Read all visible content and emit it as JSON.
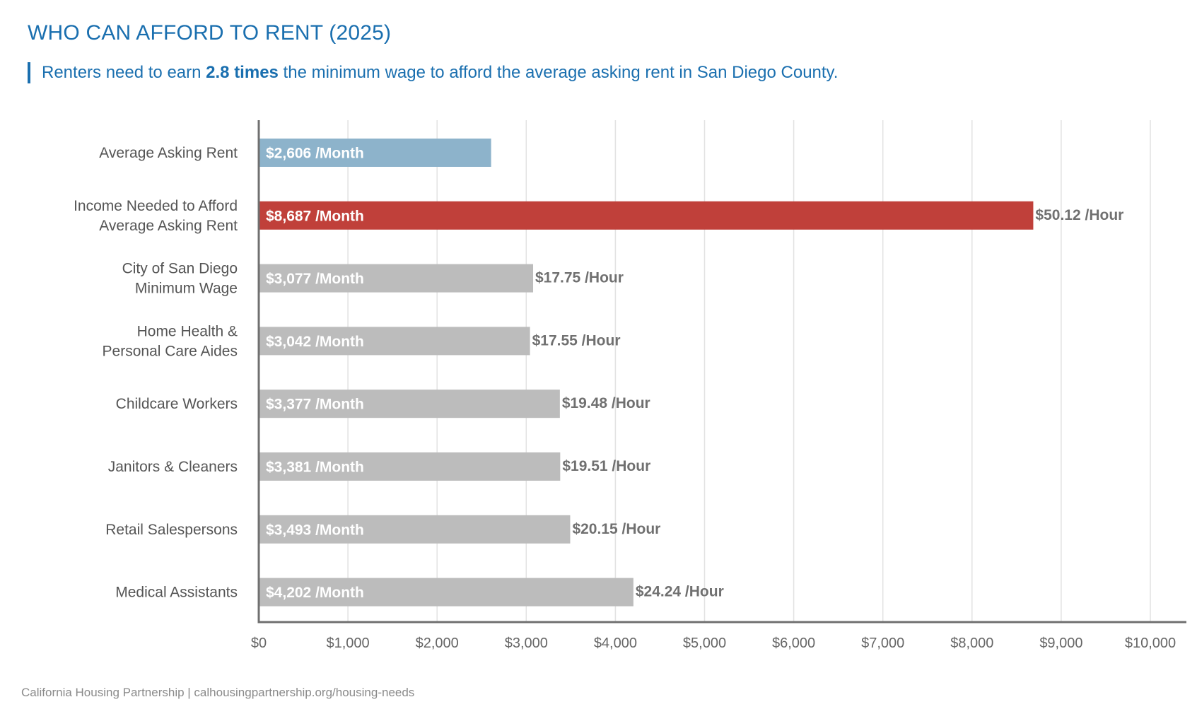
{
  "header": {
    "title": "WHO CAN AFFORD TO RENT (2025)",
    "subtitle_pre": "Renters need to earn ",
    "subtitle_bold": "2.8 times",
    "subtitle_post": " the minimum wage to afford the average asking rent in San Diego County."
  },
  "footer": {
    "source": "California Housing Partnership | calhousingpartnership.org/housing-needs"
  },
  "colors": {
    "rent": "#8db3cb",
    "income_needed": "#c0403a",
    "occupation": "#bcbcbc",
    "axis": "#707070",
    "grid": "#e2e2e2",
    "accent": "#1a6faf"
  },
  "chart_data": {
    "type": "bar",
    "orientation": "horizontal",
    "title": "WHO CAN AFFORD TO RENT (2025)",
    "xlim": [
      0,
      10000
    ],
    "x_ticks": [
      0,
      1000,
      2000,
      3000,
      4000,
      5000,
      6000,
      7000,
      8000,
      9000,
      10000
    ],
    "x_tick_labels": [
      "$0",
      "$1,000",
      "$2,000",
      "$3,000",
      "$4,000",
      "$5,000",
      "$6,000",
      "$7,000",
      "$8,000",
      "$9,000",
      "$10,000"
    ],
    "grid": "vertical",
    "categories": [
      [
        "Average Asking Rent"
      ],
      [
        "Income Needed to Afford",
        "Average Asking Rent"
      ],
      [
        "City of San Diego",
        "Minimum Wage"
      ],
      [
        "Home Health &",
        "Personal Care Aides"
      ],
      [
        "Childcare Workers"
      ],
      [
        "Janitors & Cleaners"
      ],
      [
        "Retail Salespersons"
      ],
      [
        "Medical Assistants"
      ]
    ],
    "values": [
      2606,
      8687,
      3077,
      3042,
      3377,
      3381,
      3493,
      4202
    ],
    "bar_labels": [
      "$2,606 /Month",
      "$8,687 /Month",
      "$3,077 /Month",
      "$3,042 /Month",
      "$3,377 /Month",
      "$3,381 /Month",
      "$3,493 /Month",
      "$4,202 /Month"
    ],
    "hourly_labels": [
      "",
      "$50.12 /Hour",
      "$17.75 /Hour",
      "$17.55 /Hour",
      "$19.48 /Hour",
      "$19.51 /Hour",
      "$20.15 /Hour",
      "$24.24 /Hour"
    ],
    "bar_color_keys": [
      "rent",
      "income_needed",
      "occupation",
      "occupation",
      "occupation",
      "occupation",
      "occupation",
      "occupation"
    ]
  }
}
